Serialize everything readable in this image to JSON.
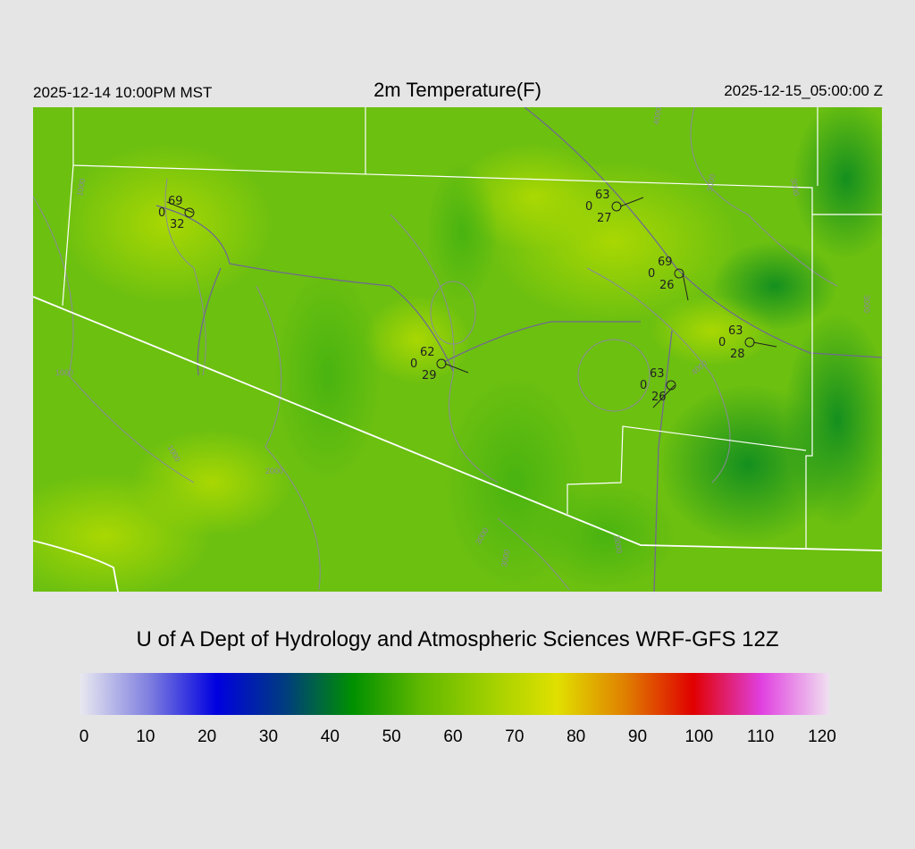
{
  "header": {
    "local_time": "2025-12-14 10:00PM MST",
    "title": "2m Temperature(F)",
    "utc_time": "2025-12-15_05:00:00 Z"
  },
  "credit": "U of A Dept of Hydrology and Atmospheric Sciences WRF-GFS 12Z",
  "colorbar": {
    "ticks": [
      "0",
      "10",
      "20",
      "30",
      "40",
      "50",
      "60",
      "70",
      "80",
      "90",
      "100",
      "110",
      "120"
    ],
    "colors": [
      "#e8e8f0",
      "#8080e0",
      "#0000e0",
      "#003c80",
      "#009000",
      "#60b800",
      "#a0d000",
      "#e0e000",
      "#e08000",
      "#e00000",
      "#e040e0",
      "#f0e0f0"
    ]
  },
  "map": {
    "contour_labels": [
      "1000",
      "1000",
      "2000",
      "3000",
      "4000",
      "3000",
      "4000",
      "3000",
      "1000",
      "3000",
      "3000",
      "3000"
    ],
    "stations": [
      {
        "temp": "69",
        "wind": "0",
        "dew": "32"
      },
      {
        "temp": "62",
        "wind": "0",
        "dew": "29"
      },
      {
        "temp": "63",
        "wind": "0",
        "dew": "27"
      },
      {
        "temp": "69",
        "wind": "0",
        "dew": "26"
      },
      {
        "temp": "63",
        "wind": "0",
        "dew": "28"
      },
      {
        "temp": "63",
        "wind": "0",
        "dew": "26"
      }
    ]
  }
}
